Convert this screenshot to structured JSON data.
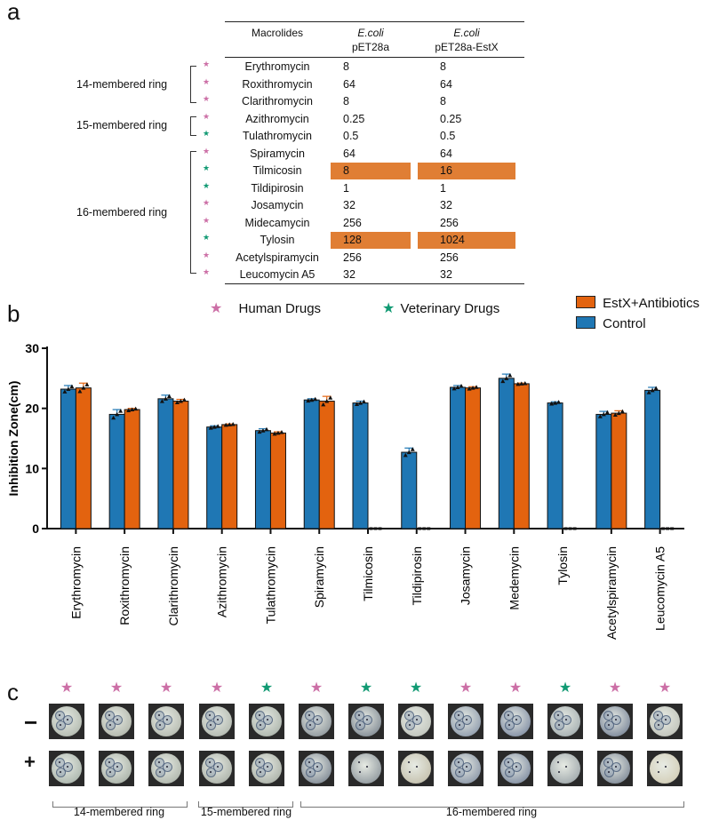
{
  "panel_letters": {
    "a": "a",
    "b": "b",
    "c": "c"
  },
  "table": {
    "headers": {
      "col1": "Macrolides",
      "col2_line1": "E.coli",
      "col2_line2": "pET28a",
      "col3_line1": "E.coli",
      "col3_line2": "pET28a-EstX"
    },
    "rows": [
      {
        "name": "Erythromycin",
        "v1": "8",
        "v2": "8",
        "drug": "human",
        "highlight": false
      },
      {
        "name": "Roxithromycin",
        "v1": "64",
        "v2": "64",
        "drug": "human",
        "highlight": false
      },
      {
        "name": "Clarithromycin",
        "v1": "8",
        "v2": "8",
        "drug": "human",
        "highlight": false
      },
      {
        "name": "Azithromycin",
        "v1": "0.25",
        "v2": "0.25",
        "drug": "human",
        "highlight": false
      },
      {
        "name": "Tulathromycin",
        "v1": "0.5",
        "v2": "0.5",
        "drug": "vet",
        "highlight": false
      },
      {
        "name": "Spiramycin",
        "v1": "64",
        "v2": "64",
        "drug": "human",
        "highlight": false
      },
      {
        "name": "Tilmicosin",
        "v1": "8",
        "v2": "16",
        "drug": "vet",
        "highlight": true
      },
      {
        "name": "Tildipirosin",
        "v1": "1",
        "v2": "1",
        "drug": "vet",
        "highlight": false
      },
      {
        "name": "Josamycin",
        "v1": "32",
        "v2": "32",
        "drug": "human",
        "highlight": false
      },
      {
        "name": "Midecamycin",
        "v1": "256",
        "v2": "256",
        "drug": "human",
        "highlight": false
      },
      {
        "name": "Tylosin",
        "v1": "128",
        "v2": "1024",
        "drug": "vet",
        "highlight": true
      },
      {
        "name": "Acetylspiramycin",
        "v1": "256",
        "v2": "256",
        "drug": "human",
        "highlight": false
      },
      {
        "name": "Leucomycin A5",
        "v1": "32",
        "v2": "32",
        "drug": "human",
        "highlight": false
      }
    ],
    "groups": {
      "g14": "14-membered ring",
      "g15": "15-membered ring",
      "g16": "16-membered ring"
    }
  },
  "legend": {
    "human_star": "★",
    "human_label": "Human Drugs",
    "vet_star": "★",
    "vet_label": "Veterinary Drugs",
    "estx_label": "EstX+Antibiotics",
    "control_label": "Control"
  },
  "colors": {
    "human": "#cc6fa6",
    "vet": "#119a73",
    "control": "#1f77b4",
    "estx": "#e3630f",
    "highlight": "#e07e34"
  },
  "chart_data": {
    "type": "bar",
    "ylabel": "Inhibition Zone(cm)",
    "ylim": [
      0,
      30
    ],
    "yticks": [
      0,
      10,
      20,
      30
    ],
    "categories": [
      "Erythromycin",
      "Roxithromycin",
      "Clarithromycin",
      "Azithromycin",
      "Tulathromycin",
      "Spiramycin",
      "Tilmicosin",
      "Tildipirosin",
      "Josamycin",
      "Medemycin",
      "Tylosin",
      "Acetylspiramycin",
      "Leucomycin A5"
    ],
    "series": [
      {
        "name": "Control",
        "values": [
          23.2,
          19.0,
          21.6,
          16.9,
          16.3,
          21.4,
          20.9,
          12.7,
          23.5,
          25.0,
          20.9,
          19.0,
          23.0
        ],
        "errors": [
          0.6,
          0.8,
          0.6,
          0.2,
          0.3,
          0.2,
          0.3,
          0.7,
          0.3,
          0.7,
          0.2,
          0.5,
          0.5
        ]
      },
      {
        "name": "EstX+Antibiotics",
        "values": [
          23.4,
          19.8,
          21.2,
          17.3,
          15.9,
          21.2,
          0,
          0,
          23.4,
          24.1,
          0,
          19.2,
          0
        ],
        "errors": [
          0.8,
          0.2,
          0.3,
          0.1,
          0.2,
          0.8,
          0,
          0,
          0.2,
          0.1,
          0,
          0.4,
          0
        ]
      }
    ]
  },
  "photos": {
    "minus_sign": "−",
    "plus_sign": "+",
    "star": "★",
    "drugs": [
      "human",
      "human",
      "human",
      "human",
      "vet",
      "human",
      "vet",
      "vet",
      "human",
      "human",
      "vet",
      "human",
      "human"
    ],
    "groups": {
      "g14": "14-membered ring",
      "g15": "15-membered ring",
      "g16": "16-membered ring"
    }
  }
}
